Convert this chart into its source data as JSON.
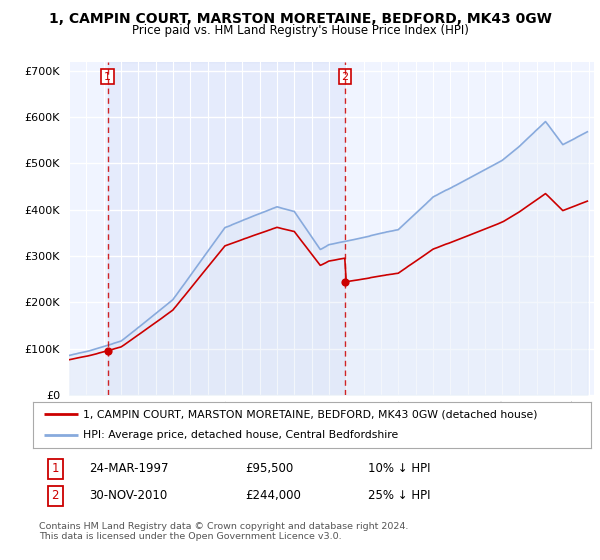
{
  "title": "1, CAMPIN COURT, MARSTON MORETAINE, BEDFORD, MK43 0GW",
  "subtitle": "Price paid vs. HM Land Registry's House Price Index (HPI)",
  "ylim": [
    0,
    720000
  ],
  "yticks": [
    0,
    100000,
    200000,
    300000,
    400000,
    500000,
    600000,
    700000
  ],
  "ytick_labels": [
    "£0",
    "£100K",
    "£200K",
    "£300K",
    "£400K",
    "£500K",
    "£600K",
    "£700K"
  ],
  "xlim_left": 1995,
  "xlim_right": 2025.3,
  "background_color": "#ffffff",
  "plot_bg_color": "#f0f4ff",
  "grid_color": "#ffffff",
  "sale1_date": 1997.23,
  "sale1_price": 95500,
  "sale2_date": 2010.92,
  "sale2_price": 244000,
  "legend_line1": "1, CAMPIN COURT, MARSTON MORETAINE, BEDFORD, MK43 0GW (detached house)",
  "legend_line2": "HPI: Average price, detached house, Central Bedfordshire",
  "annotation1_date": "24-MAR-1997",
  "annotation1_price": "£95,500",
  "annotation1_hpi": "10% ↓ HPI",
  "annotation2_date": "30-NOV-2010",
  "annotation2_price": "£244,000",
  "annotation2_hpi": "25% ↓ HPI",
  "footer": "Contains HM Land Registry data © Crown copyright and database right 2024.\nThis data is licensed under the Open Government Licence v3.0.",
  "sale_color": "#cc0000",
  "hpi_color": "#88aadd",
  "hpi_fill_color": "#dde8f5"
}
